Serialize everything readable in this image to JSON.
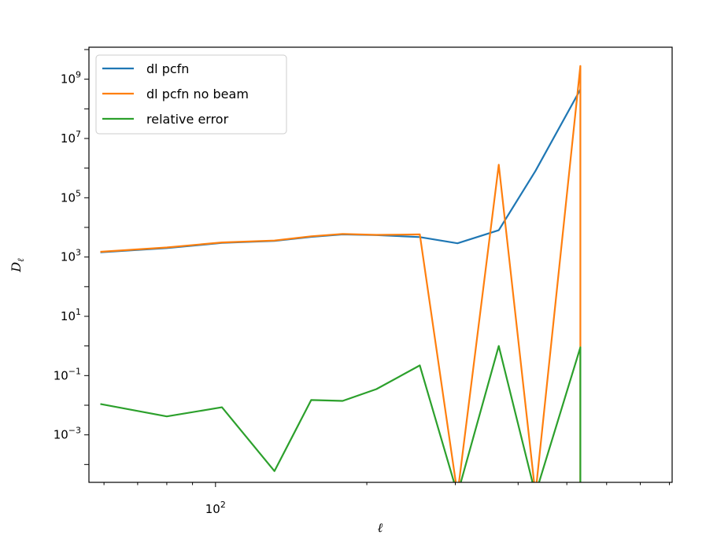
{
  "chart_data": {
    "type": "line",
    "title": "",
    "xlabel": "ℓ",
    "ylabel": "Dℓ",
    "xscale": "log",
    "yscale": "log",
    "xlim": [
      56,
      810
    ],
    "ylim": [
      2.5e-05,
      12000000000.0
    ],
    "grid": false,
    "legend_position": "top-left",
    "x_tick_labels": [
      {
        "value": 100,
        "base": "10",
        "exp": "2"
      }
    ],
    "y_tick_labels": [
      {
        "value": 0.001,
        "base": "10",
        "exp": "−3"
      },
      {
        "value": 0.1,
        "base": "10",
        "exp": "−1"
      },
      {
        "value": 10.0,
        "base": "10",
        "exp": "1"
      },
      {
        "value": 1000.0,
        "base": "10",
        "exp": "3"
      },
      {
        "value": 100000.0,
        "base": "10",
        "exp": "5"
      },
      {
        "value": 10000000.0,
        "base": "10",
        "exp": "7"
      },
      {
        "value": 1000000000.0,
        "base": "10",
        "exp": "9"
      }
    ],
    "series": [
      {
        "name": "dl pcfn",
        "color": "#1f77b4",
        "x": [
          59,
          80,
          103,
          131,
          155,
          179,
          209,
          255,
          303,
          366,
          433,
          532
        ],
        "y": [
          1450,
          2000,
          3000,
          3500,
          4800,
          5800,
          5500,
          4700,
          2900,
          8000,
          800000,
          450000000
        ]
      },
      {
        "name": "dl pcfn no beam",
        "color": "#ff7f0e",
        "x": [
          59,
          80,
          103,
          131,
          155,
          179,
          209,
          255,
          303,
          366,
          433,
          532,
          532
        ],
        "y": [
          1500,
          2100,
          3100,
          3600,
          5000,
          6000,
          5600,
          5800,
          1e-05,
          1300000.0,
          1e-05,
          2800000000.0,
          1e-05
        ]
      },
      {
        "name": "relative error",
        "color": "#2ca02c",
        "x": [
          59,
          80,
          103,
          131,
          155,
          179,
          209,
          255,
          303,
          366,
          433,
          532,
          532
        ],
        "y": [
          0.011,
          0.0042,
          0.0085,
          6e-05,
          0.015,
          0.014,
          0.035,
          0.22,
          1e-05,
          1.0,
          1e-05,
          0.9,
          1e-05
        ]
      }
    ]
  }
}
